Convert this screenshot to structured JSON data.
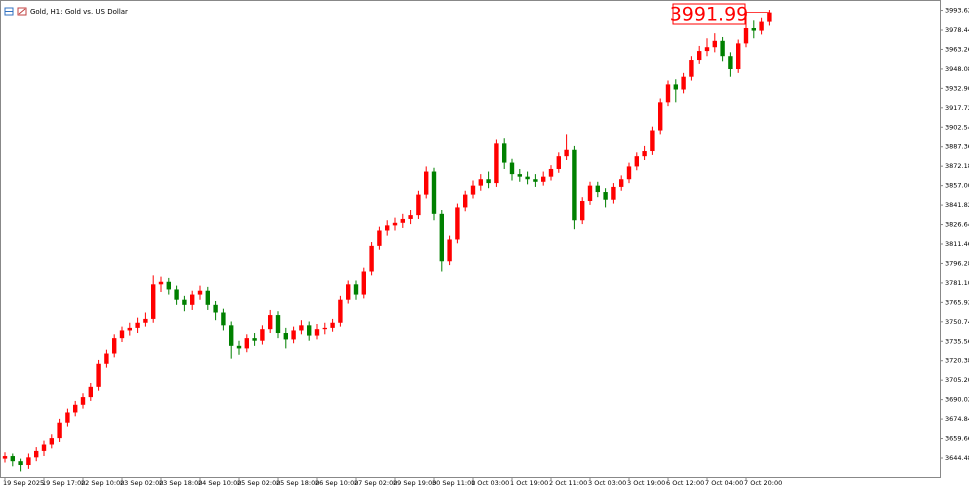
{
  "chart_data": {
    "type": "candlestick",
    "title": "Gold, H1:  Gold vs. US Dollar",
    "last_price": 3991.99,
    "up_color": "#ff0000",
    "down_color": "#008000",
    "ylim": [
      3629.65,
      4001.85
    ],
    "yticks": [
      3644.48,
      3659.66,
      3674.84,
      3690.02,
      {
        "value": 3705.2,
        "label": "3705.20"
      },
      3720.38,
      3735.56,
      3750.74,
      3765.92,
      {
        "value": 3781.1,
        "label": "3781.10"
      },
      3796.28,
      3811.46,
      3826.64,
      3841.82,
      {
        "value": 3857,
        "label": "3857.00"
      },
      3872.18,
      3887.36,
      3902.54,
      3917.72,
      {
        "value": 3932.9,
        "label": "3932.90"
      },
      3948.08,
      3963.26,
      3978.44,
      3993.62
    ],
    "categories": [
      "19 Sep 2025",
      null,
      null,
      null,
      null,
      "19 Sep 17:00",
      null,
      null,
      null,
      null,
      "22 Sep 10:00",
      null,
      null,
      null,
      null,
      "23 Sep 02:00",
      null,
      null,
      null,
      null,
      "23 Sep 18:00",
      null,
      null,
      null,
      null,
      "24 Sep 10:00",
      null,
      null,
      null,
      null,
      "25 Sep 02:00",
      null,
      null,
      null,
      null,
      "25 Sep 18:00",
      null,
      null,
      null,
      null,
      "26 Sep 10:00",
      null,
      null,
      null,
      null,
      "27 Sep 02:00",
      null,
      null,
      null,
      null,
      "29 Sep 19:00",
      null,
      null,
      null,
      null,
      "30 Sep 11:00",
      null,
      null,
      null,
      null,
      "1 Oct 03:00",
      null,
      null,
      null,
      null,
      "1 Oct 19:00",
      null,
      null,
      null,
      null,
      "2 Oct 11:00",
      null,
      null,
      null,
      null,
      "3 Oct 03:00",
      null,
      null,
      null,
      null,
      "3 Oct 19:00",
      null,
      null,
      null,
      null,
      "6 Oct 12:00",
      null,
      null,
      null,
      null,
      "7 Oct 04:00",
      null,
      null,
      null,
      null,
      "7 Oct 20:00",
      null,
      null,
      null
    ],
    "open": [
      3644,
      3646,
      3642,
      3639,
      3645,
      3650,
      3655,
      3660,
      3672,
      3680,
      3686,
      3692,
      3700,
      3718,
      3726,
      3738,
      3744,
      3746,
      3750,
      3753,
      3780,
      3782,
      3776,
      3768,
      3764,
      3772,
      3775,
      3764,
      3758,
      3748,
      3732,
      3730,
      3738,
      3736,
      3745,
      3756,
      3742,
      3737,
      3744,
      3748,
      3740,
      3745,
      3746,
      3750,
      3768,
      3780,
      3772,
      3790,
      3810,
      3822,
      3826,
      3828,
      3831,
      3834,
      3850,
      3868,
      3835,
      3798,
      3815,
      3840,
      3850,
      3857,
      3862,
      3859,
      3890,
      3875,
      3866,
      3864,
      3862,
      3860,
      3864,
      3870,
      3880,
      3885,
      3830,
      3845,
      3857,
      3852,
      3846,
      3856,
      3862,
      3872,
      3880,
      3884,
      3900,
      3922,
      3936,
      3932,
      3942,
      3955,
      3962,
      3965,
      3970,
      3958,
      3948,
      3968,
      3980,
      3978,
      3985
    ],
    "high": [
      3649,
      3648,
      3644,
      3648,
      3653,
      3658,
      3663,
      3675,
      3683,
      3689,
      3695,
      3703,
      3721,
      3729,
      3741,
      3747,
      3750,
      3754,
      3758,
      3787,
      3786,
      3785,
      3779,
      3771,
      3775,
      3779,
      3778,
      3767,
      3761,
      3751,
      3736,
      3741,
      3742,
      3748,
      3760,
      3759,
      3746,
      3747,
      3752,
      3751,
      3749,
      3750,
      3753,
      3771,
      3783,
      3783,
      3793,
      3813,
      3825,
      3830,
      3832,
      3835,
      3838,
      3853,
      3872,
      3871,
      3838,
      3818,
      3843,
      3853,
      3861,
      3866,
      3868,
      3893,
      3894,
      3878,
      3870,
      3868,
      3866,
      3868,
      3873,
      3883,
      3897,
      3888,
      3848,
      3860,
      3860,
      3855,
      3859,
      3865,
      3875,
      3883,
      3888,
      3903,
      3925,
      3939,
      3940,
      3945,
      3958,
      3966,
      3972,
      3976,
      3973,
      3961,
      3971,
      3989,
      3986,
      3988,
      3994
    ],
    "low": [
      3641,
      3638,
      3634,
      3636,
      3642,
      3646,
      3652,
      3657,
      3669,
      3677,
      3683,
      3689,
      3697,
      3715,
      3723,
      3735,
      3740,
      3742,
      3747,
      3750,
      3774,
      3772,
      3764,
      3759,
      3760,
      3768,
      3760,
      3752,
      3744,
      3722,
      3725,
      3727,
      3732,
      3733,
      3742,
      3738,
      3730,
      3734,
      3741,
      3736,
      3737,
      3741,
      3743,
      3747,
      3765,
      3768,
      3769,
      3787,
      3807,
      3818,
      3822,
      3824,
      3827,
      3831,
      3847,
      3830,
      3790,
      3795,
      3812,
      3837,
      3847,
      3853,
      3855,
      3856,
      3870,
      3861,
      3860,
      3858,
      3856,
      3857,
      3861,
      3867,
      3877,
      3823,
      3827,
      3842,
      3848,
      3840,
      3843,
      3853,
      3859,
      3869,
      3877,
      3881,
      3897,
      3919,
      3922,
      3929,
      3939,
      3952,
      3958,
      3961,
      3954,
      3942,
      3945,
      3965,
      3972,
      3975,
      3982
    ],
    "close": [
      3646,
      3642,
      3639,
      3645,
      3650,
      3655,
      3660,
      3672,
      3680,
      3686,
      3692,
      3700,
      3718,
      3726,
      3738,
      3744,
      3746,
      3750,
      3753,
      3780,
      3782,
      3776,
      3768,
      3764,
      3772,
      3775,
      3764,
      3758,
      3748,
      3732,
      3730,
      3738,
      3736,
      3745,
      3756,
      3742,
      3737,
      3744,
      3748,
      3740,
      3745,
      3746,
      3750,
      3768,
      3780,
      3772,
      3790,
      3810,
      3822,
      3826,
      3828,
      3831,
      3834,
      3850,
      3868,
      3835,
      3798,
      3815,
      3840,
      3850,
      3857,
      3862,
      3859,
      3890,
      3875,
      3866,
      3864,
      3862,
      3860,
      3864,
      3870,
      3880,
      3885,
      3830,
      3845,
      3857,
      3852,
      3846,
      3856,
      3862,
      3872,
      3880,
      3884,
      3900,
      3922,
      3936,
      3932,
      3942,
      3955,
      3962,
      3965,
      3970,
      3958,
      3948,
      3968,
      3980,
      3978,
      3985,
      3991.99
    ]
  }
}
